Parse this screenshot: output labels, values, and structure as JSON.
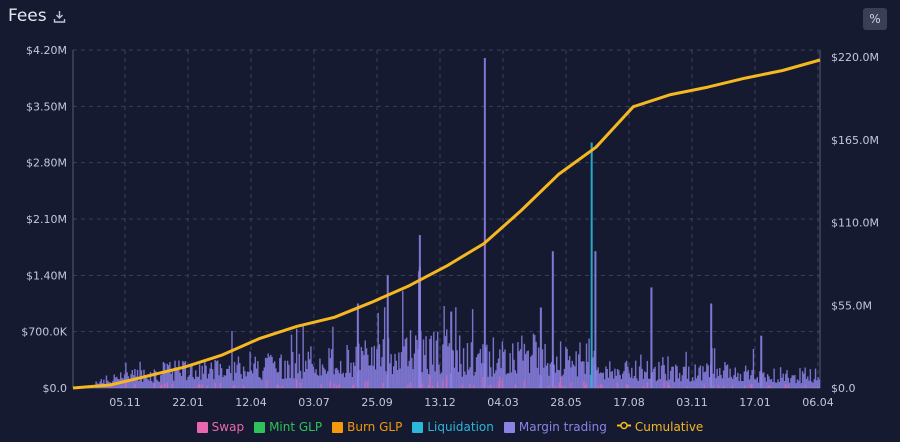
{
  "header": {
    "title": "Fees",
    "download_icon": "download-icon",
    "percent_label": "%"
  },
  "chart_data": {
    "type": "bar",
    "left_axis": {
      "ticks": [
        "$0.0",
        "$700.0K",
        "$1.40M",
        "$2.10M",
        "$2.80M",
        "$3.50M",
        "$4.20M"
      ],
      "range": [
        0,
        4200000
      ]
    },
    "right_axis": {
      "ticks": [
        "$0.0",
        "$55.0M",
        "$110.0M",
        "$165.0M",
        "$220.0M"
      ],
      "range": [
        0,
        220000000
      ]
    },
    "x_ticks": [
      "05.11",
      "22.01",
      "12.04",
      "03.07",
      "25.09",
      "13.12",
      "04.03",
      "28.05",
      "17.08",
      "03.11",
      "17.01",
      "06.04"
    ],
    "grid": true,
    "legend_position": "bottom",
    "series": [
      {
        "name": "Swap",
        "color": "#e868b0"
      },
      {
        "name": "Mint GLP",
        "color": "#2fc25b"
      },
      {
        "name": "Burn GLP",
        "color": "#f29a0c"
      },
      {
        "name": "Liquidation",
        "color": "#2ab7d8"
      },
      {
        "name": "Margin trading",
        "color": "#8c82e6"
      },
      {
        "name": "Cumulative",
        "color": "#f5b820"
      }
    ],
    "cumulative": {
      "x": [
        0,
        0.05,
        0.1,
        0.15,
        0.2,
        0.25,
        0.3,
        0.35,
        0.4,
        0.45,
        0.5,
        0.55,
        0.6,
        0.65,
        0.7,
        0.75,
        0.8,
        0.85,
        0.9,
        0.95,
        1.0
      ],
      "y": [
        0,
        2,
        8,
        14,
        22,
        33,
        41,
        47,
        57,
        68,
        81,
        96,
        118,
        142,
        160,
        187,
        195,
        200,
        206,
        211,
        218
      ]
    },
    "spikes": [
      {
        "x": 0.55,
        "value": 4100000,
        "series": "Margin trading"
      },
      {
        "x": 0.463,
        "value": 1900000,
        "series": "Margin trading"
      },
      {
        "x": 0.693,
        "value": 3050000,
        "series": "Liquidation"
      },
      {
        "x": 0.698,
        "value": 1700000,
        "series": "Margin trading"
      },
      {
        "x": 0.641,
        "value": 1700000,
        "series": "Margin trading"
      },
      {
        "x": 0.462,
        "value": 1450000,
        "series": "Margin trading"
      },
      {
        "x": 0.463,
        "value": 1500000,
        "series": "Margin trading"
      },
      {
        "x": 0.773,
        "value": 1250000,
        "series": "Margin trading"
      },
      {
        "x": 0.42,
        "value": 1400000,
        "series": "Margin trading"
      },
      {
        "x": 0.38,
        "value": 1050000,
        "series": "Margin trading"
      },
      {
        "x": 0.505,
        "value": 950000,
        "series": "Margin trading"
      },
      {
        "x": 0.625,
        "value": 1000000,
        "series": "Margin trading"
      },
      {
        "x": 0.853,
        "value": 1050000,
        "series": "Margin trading"
      },
      {
        "x": 0.92,
        "value": 650000,
        "series": "Margin trading"
      }
    ]
  }
}
